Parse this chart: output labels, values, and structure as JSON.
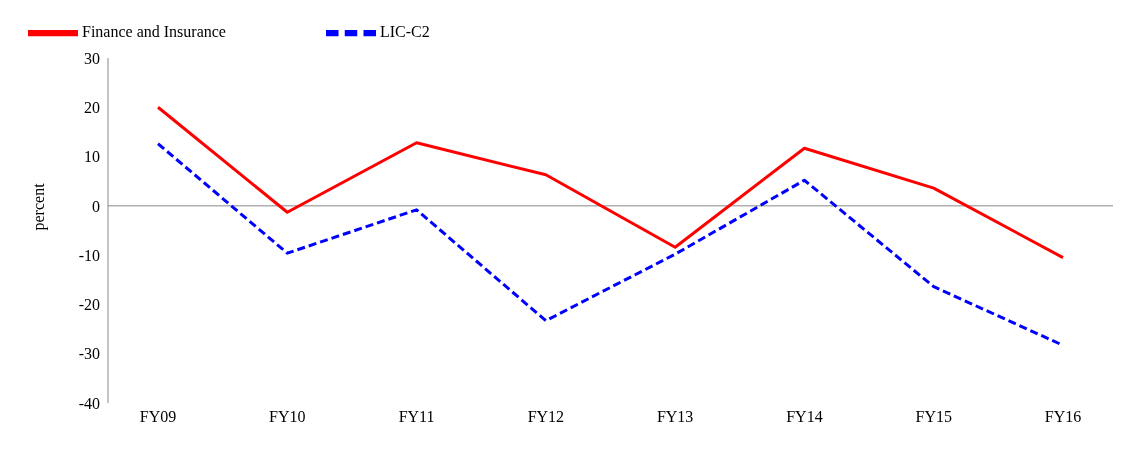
{
  "chart_data": {
    "type": "line",
    "ylabel": "percent",
    "categories": [
      "FY09",
      "FY10",
      "FY11",
      "FY12",
      "FY13",
      "FY14",
      "FY15",
      "FY16"
    ],
    "series": [
      {
        "name": "Finance and Insurance",
        "color": "#ff0000",
        "line_style": "solid",
        "values": [
          20,
          -1.3,
          12.8,
          6.3,
          -8.4,
          11.7,
          3.6,
          -10.5
        ]
      },
      {
        "name": "LIC-C2",
        "color": "#0000ff",
        "line_style": "dashed",
        "values": [
          12.6,
          -9.6,
          -0.8,
          -23.3,
          -9.8,
          5.2,
          -16.4,
          -28.3
        ]
      }
    ],
    "ylim": [
      -40,
      30
    ],
    "yticks": [
      -40,
      -30,
      -20,
      -10,
      0,
      10,
      20,
      30
    ],
    "legend": "top left",
    "marker": "none"
  }
}
